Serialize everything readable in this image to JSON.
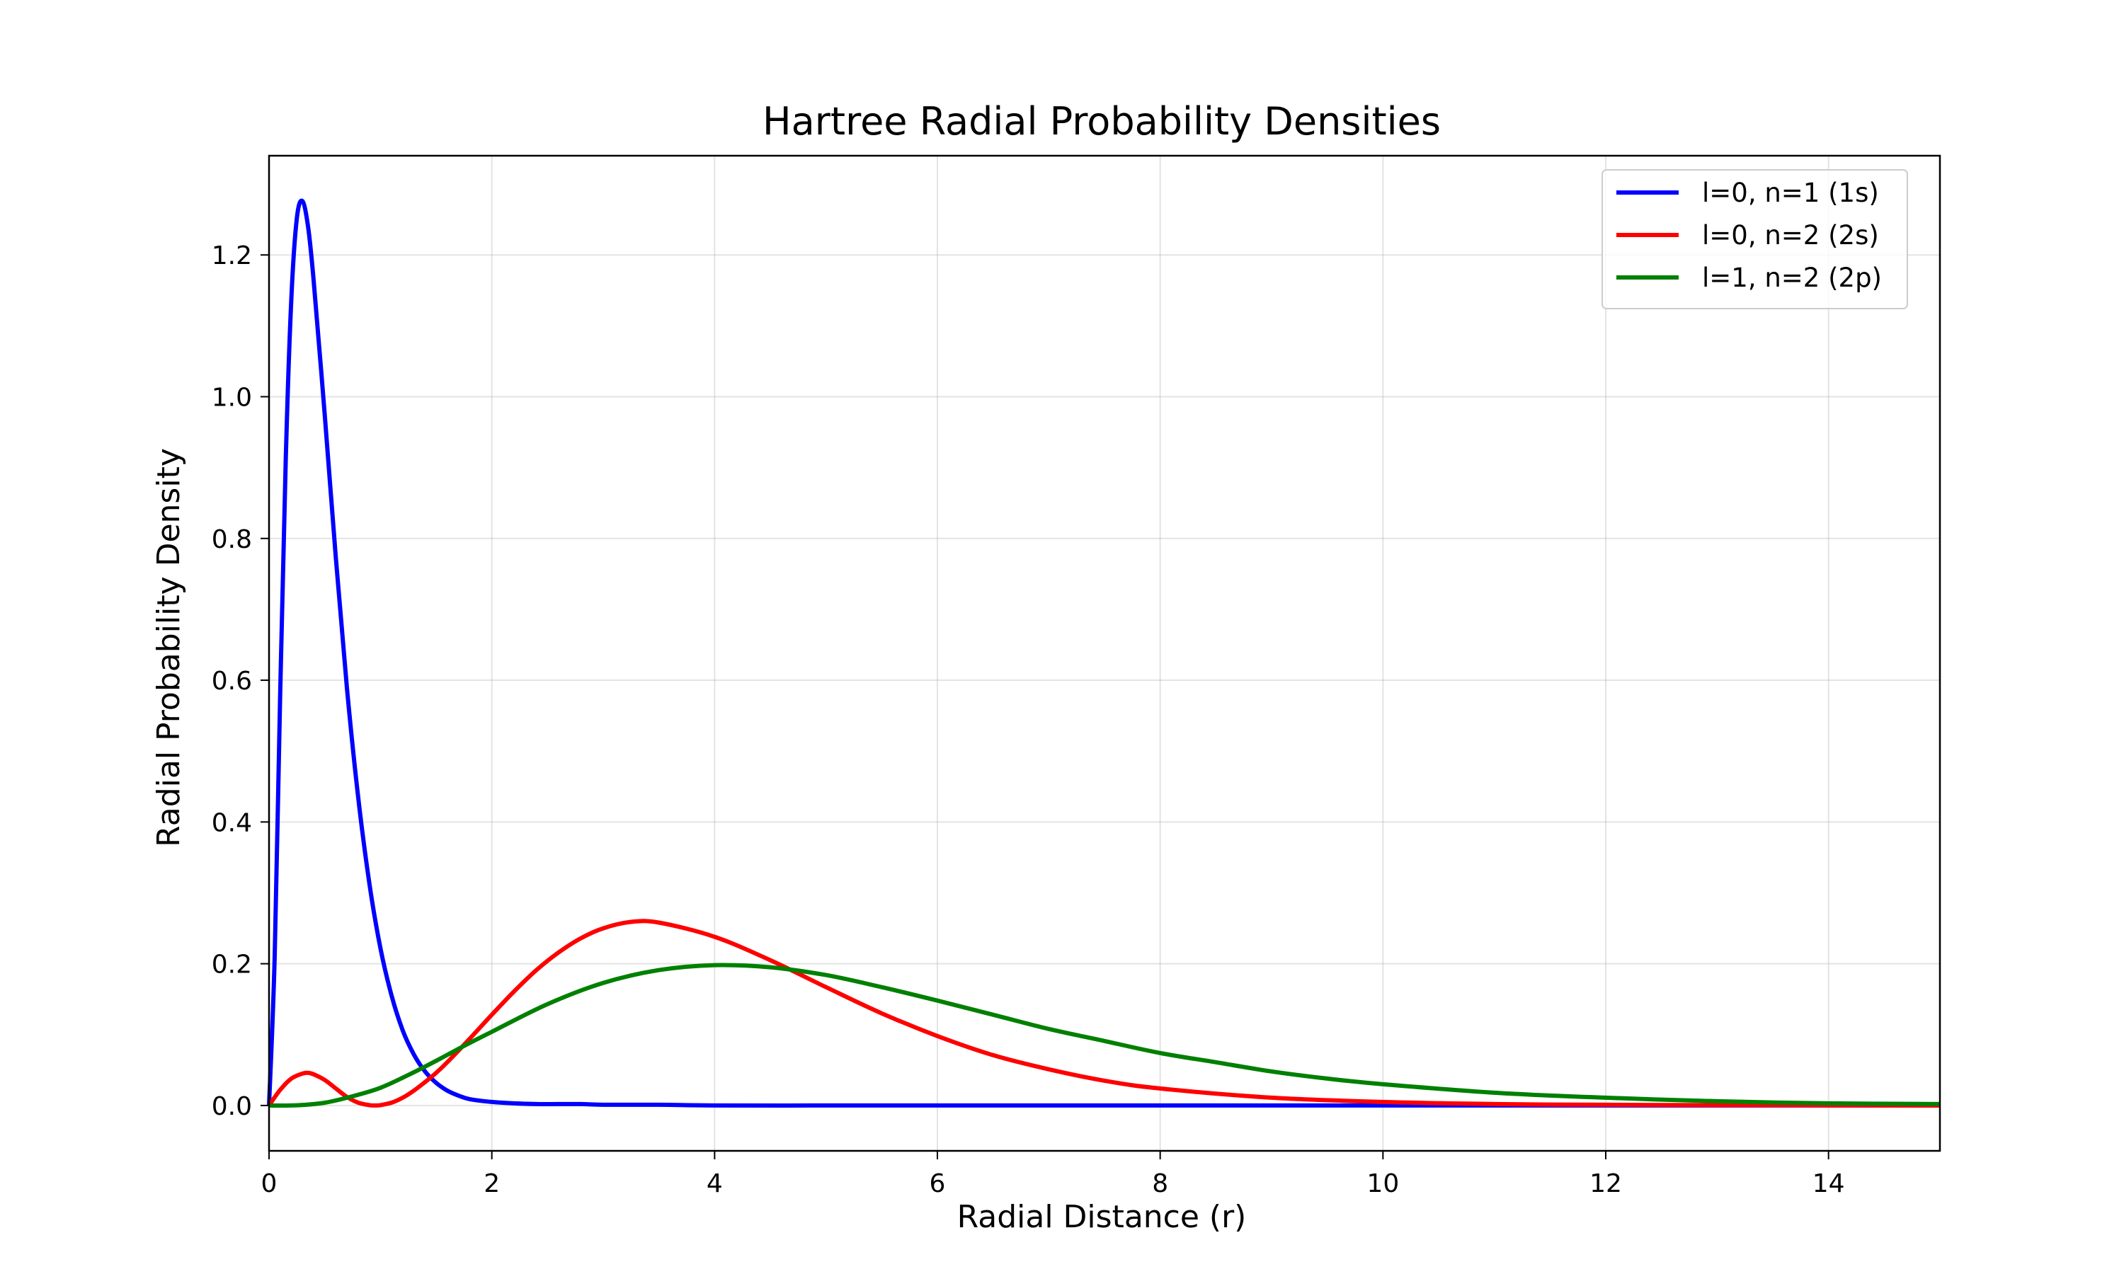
{
  "chart_data": {
    "type": "line",
    "title": "Hartree Radial Probability Densities",
    "xlabel": "Radial Distance (r)",
    "ylabel": "Radial Probability Density",
    "xlim": [
      0,
      15
    ],
    "ylim": [
      -0.064,
      1.34
    ],
    "xticks": [
      0,
      2,
      4,
      6,
      8,
      10,
      12,
      14
    ],
    "xtick_labels": [
      "0",
      "2",
      "4",
      "6",
      "8",
      "10",
      "12",
      "14"
    ],
    "yticks": [
      0.0,
      0.2,
      0.4,
      0.6,
      0.8,
      1.0,
      1.2
    ],
    "ytick_labels": [
      "0.0",
      "0.2",
      "0.4",
      "0.6",
      "0.8",
      "1.0",
      "1.2"
    ],
    "grid": true,
    "legend_position": "top-right",
    "series": [
      {
        "name": "l=0, n=1 (1s)",
        "color": "#0000ff",
        "x": [
          0,
          0.05,
          0.1,
          0.15,
          0.2,
          0.25,
          0.3,
          0.35,
          0.4,
          0.5,
          0.6,
          0.7,
          0.8,
          0.9,
          1.0,
          1.1,
          1.2,
          1.3,
          1.4,
          1.5,
          1.6,
          1.7,
          1.8,
          2.0,
          2.2,
          2.4,
          2.6,
          2.8,
          3.0,
          3.5,
          4.0,
          5.0,
          6.0,
          8.0,
          10.0,
          12.0,
          15.0
        ],
        "y": [
          0,
          0.207,
          0.579,
          0.911,
          1.138,
          1.252,
          1.276,
          1.24,
          1.165,
          0.974,
          0.772,
          0.588,
          0.435,
          0.314,
          0.222,
          0.155,
          0.106,
          0.072,
          0.048,
          0.032,
          0.021,
          0.014,
          0.009,
          0.005,
          0.003,
          0.002,
          0.002,
          0.002,
          0.001,
          0.001,
          0.0,
          0.0,
          0.0,
          0.0,
          0.0,
          0.0,
          0.0
        ]
      },
      {
        "name": "l=0, n=2 (2s)",
        "color": "#ff0000",
        "x": [
          0,
          0.1,
          0.2,
          0.3,
          0.35,
          0.4,
          0.5,
          0.6,
          0.7,
          0.8,
          0.9,
          0.95,
          1.0,
          1.1,
          1.2,
          1.3,
          1.4,
          1.5,
          1.6,
          1.8,
          2.0,
          2.2,
          2.4,
          2.6,
          2.8,
          3.0,
          3.25,
          3.5,
          4.0,
          4.5,
          5.0,
          5.5,
          6.0,
          6.5,
          7.0,
          7.5,
          8.0,
          9.0,
          10.0,
          11.0,
          12.0,
          13.0,
          14.0,
          15.0
        ],
        "y": [
          0,
          0.022,
          0.038,
          0.045,
          0.046,
          0.044,
          0.036,
          0.024,
          0.012,
          0.004,
          0.0005,
          0.0,
          0.0005,
          0.004,
          0.011,
          0.021,
          0.033,
          0.046,
          0.061,
          0.094,
          0.128,
          0.161,
          0.191,
          0.216,
          0.236,
          0.25,
          0.259,
          0.258,
          0.238,
          0.205,
          0.167,
          0.13,
          0.098,
          0.071,
          0.051,
          0.035,
          0.024,
          0.011,
          0.005,
          0.002,
          0.001,
          0.0005,
          0.0002,
          0.0
        ]
      },
      {
        "name": "l=1, n=2 (2p)",
        "color": "#008000",
        "x": [
          0,
          0.25,
          0.5,
          0.75,
          1.0,
          1.25,
          1.5,
          1.75,
          2.0,
          2.5,
          3.0,
          3.5,
          4.0,
          4.5,
          5.0,
          5.5,
          6.0,
          6.5,
          7.0,
          7.5,
          8.0,
          8.5,
          9.0,
          9.5,
          10.0,
          11.0,
          12.0,
          13.0,
          14.0,
          15.0
        ],
        "y": [
          0,
          0.0003,
          0.0039,
          0.013,
          0.025,
          0.043,
          0.063,
          0.084,
          0.104,
          0.143,
          0.173,
          0.191,
          0.198,
          0.195,
          0.184,
          0.167,
          0.148,
          0.128,
          0.108,
          0.091,
          0.074,
          0.061,
          0.048,
          0.038,
          0.03,
          0.018,
          0.011,
          0.006,
          0.003,
          0.002
        ]
      }
    ]
  }
}
